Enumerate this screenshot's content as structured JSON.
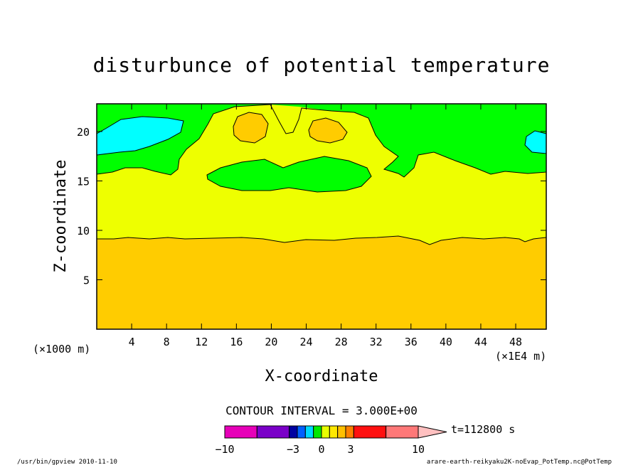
{
  "chart_data": {
    "type": "contour",
    "title": "disturbunce of potential temperature",
    "xlabel": "X-coordinate",
    "ylabel": "Z-coordinate",
    "x_unit_left": "(×1000 m)",
    "x_unit_right": "(×1E4 m)",
    "xlim": [
      0,
      51.5
    ],
    "ylim": [
      0,
      22.8
    ],
    "x_ticks": [
      4,
      8,
      12,
      16,
      20,
      24,
      28,
      32,
      36,
      40,
      44,
      48
    ],
    "y_ticks": [
      5,
      10,
      15,
      20
    ],
    "contour_interval_label": "CONTOUR INTERVAL = 3.000E+00",
    "time_label": "t=112800 s",
    "colorbar_labels": [
      "−10",
      "−3",
      "0",
      "3",
      "10"
    ],
    "colorbar_colors": [
      "#e600b8",
      "#7a00c8",
      "#0000a0",
      "#0060ff",
      "#00d8ff",
      "#00e800",
      "#e8ff00",
      "#ffe800",
      "#ffc000",
      "#ff8000",
      "#ff1010",
      "#ff7878",
      "#ffc0c0"
    ],
    "region_colors": {
      "lower": "#ffcc00",
      "mid": "#eeff00",
      "upper": "#00ff00",
      "cold": "#00ffff",
      "warm_cells": "#ffcc00"
    },
    "footer_left": "/usr/bin/gpview  2010-11-10",
    "footer_right": "arare-earth-reikyaku2K-noEvap_PotTemp.nc@PotTemp"
  }
}
